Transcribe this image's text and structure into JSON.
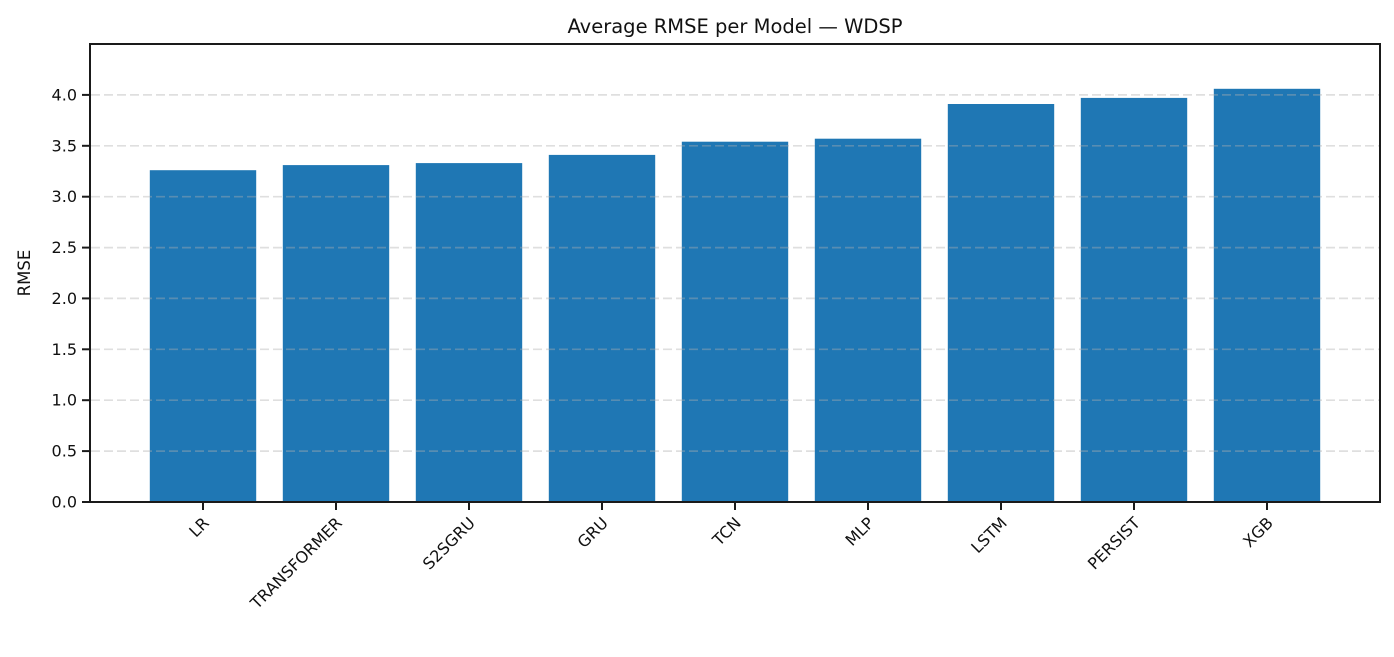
{
  "chart_data": {
    "type": "bar",
    "title": "Average RMSE per Model — WDSP",
    "xlabel": "",
    "ylabel": "RMSE",
    "categories": [
      "LR",
      "TRANSFORMER",
      "S2SGRU",
      "GRU",
      "TCN",
      "MLP",
      "LSTM",
      "PERSIST",
      "XGB"
    ],
    "values": [
      3.26,
      3.31,
      3.33,
      3.41,
      3.54,
      3.57,
      3.91,
      3.97,
      4.06
    ],
    "ylim": [
      0,
      4.5
    ],
    "yticks": [
      0,
      0.5,
      1,
      1.5,
      2,
      2.5,
      3,
      3.5,
      4
    ],
    "ytick_labels": [
      "0.0",
      "0.5",
      "1.0",
      "1.5",
      "2.0",
      "2.5",
      "3.0",
      "3.5",
      "4.0"
    ],
    "x_tick_rotation_deg": 45,
    "bar_color": "#1f77b4",
    "axis_color": "#1a1a1a",
    "grid": {
      "visible": true,
      "orientation": "horizontal",
      "style": "dashed",
      "color": "#b0b0b0",
      "opacity": 0.4,
      "drawn_above_bars": true
    },
    "legend": null,
    "layout": {
      "bar_width_fraction": 0.8,
      "x_margin_units": 0.85
    }
  }
}
